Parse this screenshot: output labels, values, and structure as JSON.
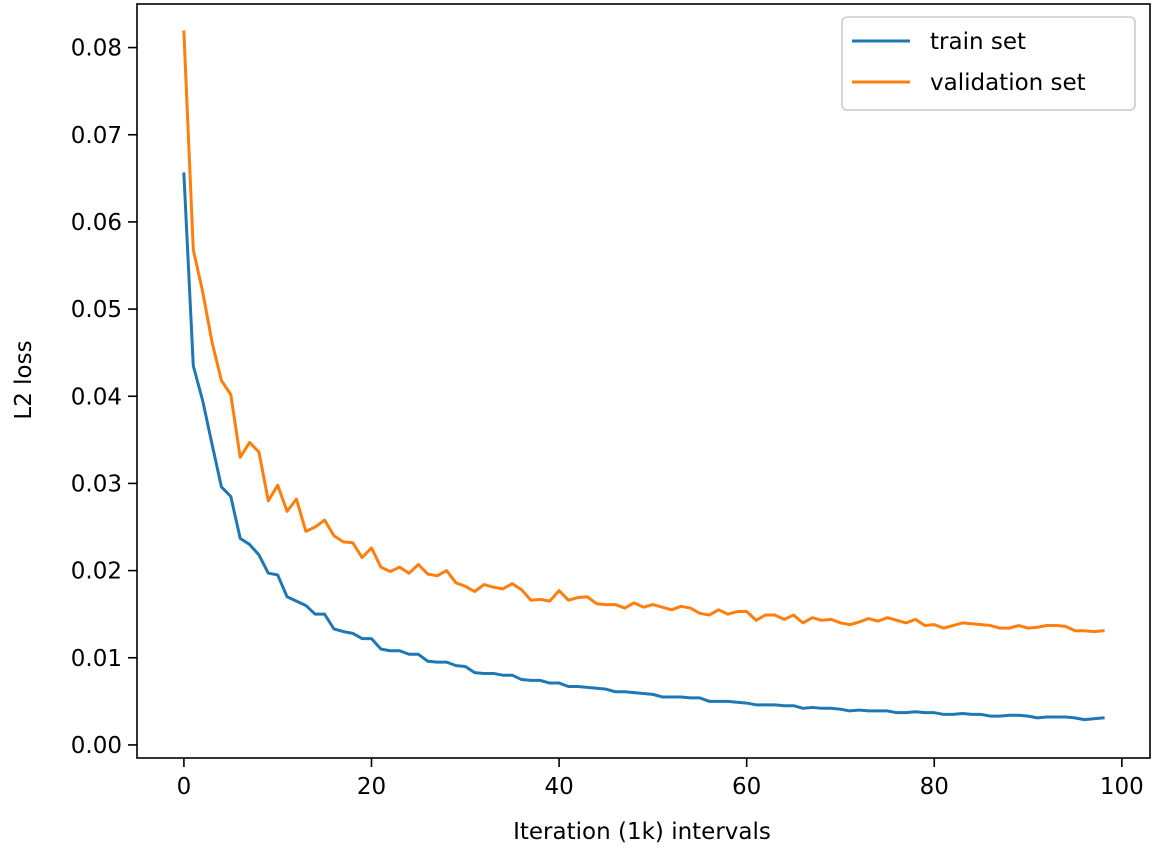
{
  "chart_data": {
    "type": "line",
    "title": "",
    "xlabel": "Iteration (1k) intervals",
    "ylabel": "L2 loss",
    "xlim": [
      -5,
      103
    ],
    "ylim": [
      -0.0015,
      0.085
    ],
    "xticks": [
      0,
      20,
      40,
      60,
      80,
      100
    ],
    "xtick_labels": [
      "0",
      "20",
      "40",
      "60",
      "80",
      "100"
    ],
    "yticks": [
      0.0,
      0.01,
      0.02,
      0.03,
      0.04,
      0.05,
      0.06,
      0.07,
      0.08
    ],
    "ytick_labels": [
      "0.00",
      "0.01",
      "0.02",
      "0.03",
      "0.04",
      "0.05",
      "0.06",
      "0.07",
      "0.08"
    ],
    "grid": false,
    "legend_position": "top-right",
    "series": [
      {
        "name": "train set",
        "color": "#1f77b4",
        "x": [
          0,
          1,
          2,
          3,
          4,
          5,
          6,
          7,
          8,
          9,
          10,
          11,
          12,
          13,
          14,
          15,
          16,
          17,
          18,
          19,
          20,
          21,
          22,
          23,
          24,
          25,
          26,
          27,
          28,
          29,
          30,
          31,
          32,
          33,
          34,
          35,
          36,
          37,
          38,
          39,
          40,
          41,
          42,
          43,
          44,
          45,
          46,
          47,
          48,
          49,
          50,
          51,
          52,
          53,
          54,
          55,
          56,
          57,
          58,
          59,
          60,
          61,
          62,
          63,
          64,
          65,
          66,
          67,
          68,
          69,
          70,
          71,
          72,
          73,
          74,
          75,
          76,
          77,
          78,
          79,
          80,
          81,
          82,
          83,
          84,
          85,
          86,
          87,
          88,
          89,
          90,
          91,
          92,
          93,
          94,
          95,
          96,
          97,
          98
        ],
        "y": [
          0.0655,
          0.0435,
          0.0395,
          0.0345,
          0.0296,
          0.0285,
          0.0237,
          0.023,
          0.0218,
          0.0197,
          0.0195,
          0.017,
          0.0165,
          0.016,
          0.015,
          0.015,
          0.0133,
          0.013,
          0.0128,
          0.0122,
          0.0122,
          0.011,
          0.0108,
          0.0108,
          0.0104,
          0.0104,
          0.0096,
          0.0095,
          0.0095,
          0.0091,
          0.009,
          0.0083,
          0.0082,
          0.0082,
          0.008,
          0.008,
          0.0075,
          0.0074,
          0.0074,
          0.0071,
          0.0071,
          0.0067,
          0.0067,
          0.0066,
          0.0065,
          0.0064,
          0.0061,
          0.0061,
          0.006,
          0.0059,
          0.0058,
          0.0055,
          0.0055,
          0.0055,
          0.0054,
          0.0054,
          0.005,
          0.005,
          0.005,
          0.0049,
          0.0048,
          0.0046,
          0.0046,
          0.0046,
          0.0045,
          0.0045,
          0.0042,
          0.0043,
          0.0042,
          0.0042,
          0.0041,
          0.0039,
          0.004,
          0.0039,
          0.0039,
          0.0039,
          0.0037,
          0.0037,
          0.0038,
          0.0037,
          0.0037,
          0.0035,
          0.0035,
          0.0036,
          0.0035,
          0.0035,
          0.0033,
          0.0033,
          0.0034,
          0.0034,
          0.0033,
          0.0031,
          0.0032,
          0.0032,
          0.0032,
          0.0031,
          0.0029,
          0.003,
          0.0031
        ]
      },
      {
        "name": "validation set",
        "color": "#ff7f0e",
        "x": [
          0,
          1,
          2,
          3,
          4,
          5,
          6,
          7,
          8,
          9,
          10,
          11,
          12,
          13,
          14,
          15,
          16,
          17,
          18,
          19,
          20,
          21,
          22,
          23,
          24,
          25,
          26,
          27,
          28,
          29,
          30,
          31,
          32,
          33,
          34,
          35,
          36,
          37,
          38,
          39,
          40,
          41,
          42,
          43,
          44,
          45,
          46,
          47,
          48,
          49,
          50,
          51,
          52,
          53,
          54,
          55,
          56,
          57,
          58,
          59,
          60,
          61,
          62,
          63,
          64,
          65,
          66,
          67,
          68,
          69,
          70,
          71,
          72,
          73,
          74,
          75,
          76,
          77,
          78,
          79,
          80,
          81,
          82,
          83,
          84,
          85,
          86,
          87,
          88,
          89,
          90,
          91,
          92,
          93,
          94,
          95,
          96,
          97,
          98
        ],
        "y": [
          0.0818,
          0.0568,
          0.052,
          0.0462,
          0.0418,
          0.0402,
          0.033,
          0.0347,
          0.0336,
          0.028,
          0.0298,
          0.0268,
          0.0282,
          0.0245,
          0.025,
          0.0258,
          0.024,
          0.0233,
          0.0232,
          0.0215,
          0.0226,
          0.0204,
          0.0199,
          0.0204,
          0.0197,
          0.0207,
          0.0196,
          0.0194,
          0.02,
          0.0186,
          0.0182,
          0.0176,
          0.0184,
          0.0181,
          0.0179,
          0.0185,
          0.0178,
          0.0166,
          0.0167,
          0.0165,
          0.0177,
          0.0166,
          0.0169,
          0.017,
          0.0162,
          0.0161,
          0.0161,
          0.0157,
          0.0163,
          0.0158,
          0.0161,
          0.0158,
          0.0155,
          0.0159,
          0.0157,
          0.0151,
          0.0149,
          0.0155,
          0.015,
          0.0153,
          0.0153,
          0.0143,
          0.0149,
          0.0149,
          0.0144,
          0.0149,
          0.014,
          0.0146,
          0.0143,
          0.0144,
          0.014,
          0.0138,
          0.0141,
          0.0145,
          0.0142,
          0.0146,
          0.0143,
          0.014,
          0.0144,
          0.0137,
          0.0138,
          0.0134,
          0.0137,
          0.014,
          0.0139,
          0.0138,
          0.0137,
          0.0134,
          0.0134,
          0.0137,
          0.0134,
          0.0135,
          0.0137,
          0.0137,
          0.0136,
          0.0131,
          0.0131,
          0.013,
          0.0131
        ]
      }
    ]
  }
}
